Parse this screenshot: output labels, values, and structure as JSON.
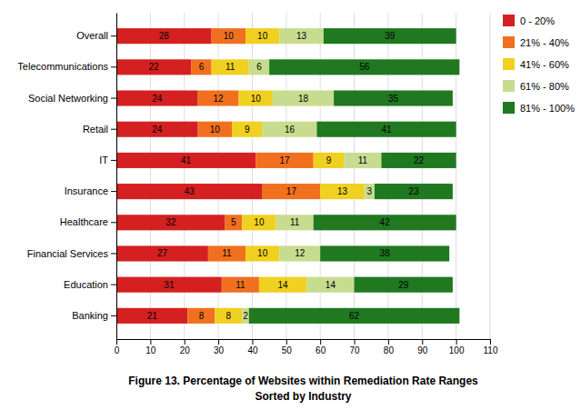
{
  "chart_data": {
    "type": "bar",
    "orientation": "horizontal",
    "stacked": true,
    "title": "Figure 13. Percentage of Websites within Remediation Rate Ranges",
    "subtitle": "Sorted by Industry",
    "categories": [
      "Banking",
      "Education",
      "Financial Services",
      "Healthcare",
      "Insurance",
      "IT",
      "Retail",
      "Social Networking",
      "Telecommunications",
      "Overall"
    ],
    "series": [
      {
        "name": "0 - 20%",
        "color": "#D42020",
        "values": [
          21,
          31,
          27,
          32,
          43,
          41,
          24,
          24,
          22,
          28
        ]
      },
      {
        "name": "21% - 40%",
        "color": "#F07020",
        "values": [
          8,
          11,
          11,
          5,
          17,
          17,
          10,
          12,
          6,
          10
        ]
      },
      {
        "name": "41% - 60%",
        "color": "#F0D020",
        "values": [
          8,
          14,
          10,
          10,
          13,
          9,
          9,
          10,
          11,
          10
        ]
      },
      {
        "name": "61% - 80%",
        "color": "#C8DC90",
        "values": [
          2,
          14,
          12,
          11,
          3,
          11,
          16,
          18,
          6,
          13
        ]
      },
      {
        "name": "81% - 100%",
        "color": "#207820",
        "values": [
          62,
          29,
          38,
          42,
          23,
          22,
          41,
          35,
          56,
          39
        ]
      }
    ],
    "xlim": [
      0,
      110
    ],
    "xticks": [
      0,
      10,
      20,
      30,
      40,
      50,
      60,
      70,
      80,
      90,
      100,
      110
    ],
    "grid": true,
    "legend": "right",
    "data_labels": true
  }
}
